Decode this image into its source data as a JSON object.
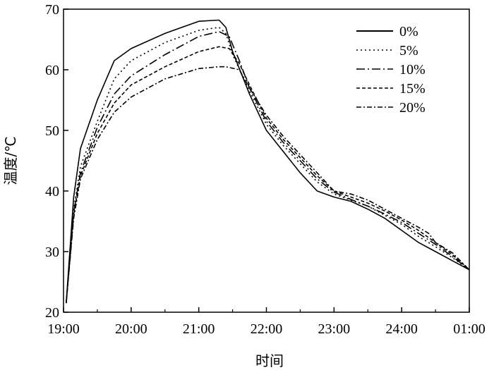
{
  "chart_data": {
    "type": "line",
    "xlabel": "时间",
    "ylabel": "温度/℃",
    "ylim": [
      20,
      70
    ],
    "yticks": [
      20,
      30,
      40,
      50,
      60,
      70
    ],
    "xlim": [
      0,
      6
    ],
    "xticks": [
      {
        "x": 0,
        "label": "19:00"
      },
      {
        "x": 1,
        "label": "20:00"
      },
      {
        "x": 2,
        "label": "21:00"
      },
      {
        "x": 3,
        "label": "22:00"
      },
      {
        "x": 4,
        "label": "23:00"
      },
      {
        "x": 5,
        "label": "24:00"
      },
      {
        "x": 6,
        "label": "01:00"
      }
    ],
    "legend": "top-right",
    "grid": false,
    "series": [
      {
        "name": "0%",
        "dash": "",
        "points": [
          [
            0.04,
            21.5
          ],
          [
            0.15,
            39
          ],
          [
            0.25,
            47
          ],
          [
            0.5,
            55
          ],
          [
            0.75,
            61.5
          ],
          [
            1,
            63.5
          ],
          [
            1.5,
            66
          ],
          [
            2,
            68
          ],
          [
            2.3,
            68.2
          ],
          [
            2.4,
            67
          ],
          [
            2.5,
            63
          ],
          [
            2.75,
            56
          ],
          [
            3,
            50
          ],
          [
            3.25,
            46.5
          ],
          [
            3.5,
            43
          ],
          [
            3.75,
            40
          ],
          [
            4,
            39
          ],
          [
            4.25,
            38.3
          ],
          [
            4.5,
            37
          ],
          [
            4.75,
            35.5
          ],
          [
            5,
            33.5
          ],
          [
            5.25,
            31.5
          ],
          [
            5.5,
            30
          ],
          [
            5.75,
            28.5
          ],
          [
            6,
            27
          ]
        ]
      },
      {
        "name": "5%",
        "dash": "2,4",
        "points": [
          [
            0.04,
            21.5
          ],
          [
            0.15,
            37
          ],
          [
            0.25,
            44
          ],
          [
            0.5,
            51.5
          ],
          [
            0.75,
            58.5
          ],
          [
            1,
            61.5
          ],
          [
            1.5,
            64.5
          ],
          [
            2,
            66.5
          ],
          [
            2.3,
            67
          ],
          [
            2.4,
            66
          ],
          [
            2.5,
            62.5
          ],
          [
            2.75,
            56.5
          ],
          [
            3,
            51
          ],
          [
            3.25,
            47.5
          ],
          [
            3.5,
            44.5
          ],
          [
            3.75,
            41.5
          ],
          [
            4,
            39.5
          ],
          [
            4.25,
            38.5
          ],
          [
            4.5,
            37.5
          ],
          [
            4.75,
            36
          ],
          [
            5,
            34.5
          ],
          [
            5.25,
            32.5
          ],
          [
            5.5,
            30.8
          ],
          [
            5.75,
            29
          ],
          [
            6,
            27
          ]
        ]
      },
      {
        "name": "10%",
        "dash": "12,4,2,4",
        "points": [
          [
            0.04,
            21.5
          ],
          [
            0.15,
            36.5
          ],
          [
            0.25,
            43
          ],
          [
            0.5,
            50.5
          ],
          [
            0.75,
            56
          ],
          [
            1,
            59
          ],
          [
            1.5,
            62.5
          ],
          [
            2,
            65.5
          ],
          [
            2.3,
            66.3
          ],
          [
            2.45,
            65.5
          ],
          [
            2.6,
            61.5
          ],
          [
            2.75,
            57
          ],
          [
            3,
            51.5
          ],
          [
            3.25,
            48
          ],
          [
            3.5,
            45
          ],
          [
            3.75,
            42
          ],
          [
            4,
            39.8
          ],
          [
            4.25,
            38.6
          ],
          [
            4.5,
            37.5
          ],
          [
            4.75,
            36.2
          ],
          [
            5,
            34.8
          ],
          [
            5.25,
            33
          ],
          [
            5.5,
            31.2
          ],
          [
            5.75,
            29.2
          ],
          [
            6,
            27
          ]
        ]
      },
      {
        "name": "15%",
        "dash": "5,3",
        "points": [
          [
            0.04,
            21.5
          ],
          [
            0.15,
            36
          ],
          [
            0.25,
            42.5
          ],
          [
            0.5,
            49.5
          ],
          [
            0.75,
            54.5
          ],
          [
            1,
            57.5
          ],
          [
            1.5,
            60.5
          ],
          [
            2,
            63
          ],
          [
            2.3,
            63.8
          ],
          [
            2.45,
            63.5
          ],
          [
            2.6,
            61
          ],
          [
            2.75,
            57.5
          ],
          [
            3,
            52
          ],
          [
            3.25,
            48.5
          ],
          [
            3.5,
            45.5
          ],
          [
            3.75,
            42.5
          ],
          [
            4,
            40
          ],
          [
            4.25,
            39
          ],
          [
            4.5,
            38
          ],
          [
            4.75,
            36.7
          ],
          [
            5,
            35.2
          ],
          [
            5.25,
            33.5
          ],
          [
            5.5,
            31.5
          ],
          [
            5.75,
            29.5
          ],
          [
            6,
            27
          ]
        ]
      },
      {
        "name": "20%",
        "dash": "7,3,2,3",
        "points": [
          [
            0.04,
            21.5
          ],
          [
            0.15,
            35.5
          ],
          [
            0.25,
            42
          ],
          [
            0.5,
            48.5
          ],
          [
            0.75,
            53
          ],
          [
            1,
            55.5
          ],
          [
            1.5,
            58.5
          ],
          [
            2,
            60.2
          ],
          [
            2.3,
            60.5
          ],
          [
            2.4,
            60.5
          ],
          [
            2.6,
            60
          ],
          [
            2.75,
            57
          ],
          [
            3,
            52.5
          ],
          [
            3.25,
            49
          ],
          [
            3.5,
            46
          ],
          [
            3.75,
            43
          ],
          [
            4,
            40
          ],
          [
            4.25,
            39.5
          ],
          [
            4.5,
            38.5
          ],
          [
            4.75,
            37
          ],
          [
            5,
            35.5
          ],
          [
            5.25,
            34
          ],
          [
            5.4,
            33
          ],
          [
            5.5,
            31.5
          ],
          [
            5.75,
            29.8
          ],
          [
            6,
            27
          ]
        ]
      }
    ]
  }
}
